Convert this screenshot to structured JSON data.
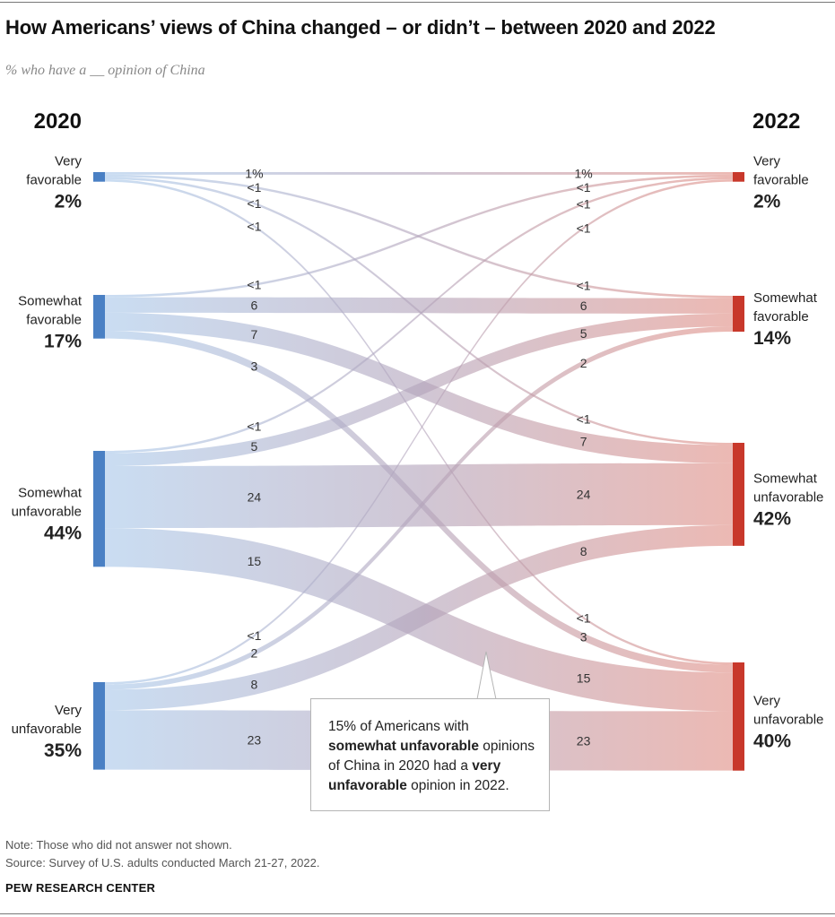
{
  "title": "How Americans’ views of China changed – or didn’t – between 2020 and 2022",
  "subtitle": "% who have a __ opinion of China",
  "note": "Note: Those who did not answer not shown.",
  "source": "Source: Survey of U.S. adults conducted March 21-27, 2022.",
  "brand": "PEW RESEARCH CENTER",
  "callout": {
    "part1": "15% of Americans with",
    "bold1": "somewhat unfavorable",
    "part2": " opinions of China in 2020 had a ",
    "bold2": "very unfavorable",
    "part3": " opinion in 2022."
  },
  "colors": {
    "left": "#4a80c4",
    "right": "#c8382b",
    "flow_start": "#a9c8ea",
    "flow_mid": "#b3a4bb",
    "flow_end": "#e08e85"
  },
  "chart_data": {
    "type": "sankey",
    "left_year": "2020",
    "right_year": "2022",
    "left_nodes": [
      {
        "label1": "Very",
        "label2": "favorable",
        "pct": "2%",
        "value": 2
      },
      {
        "label1": "Somewhat",
        "label2": "favorable",
        "pct": "17%",
        "value": 17
      },
      {
        "label1": "Somewhat",
        "label2": "unfavorable",
        "pct": "44%",
        "value": 44
      },
      {
        "label1": "Very",
        "label2": "unfavorable",
        "pct": "35%",
        "value": 35
      }
    ],
    "right_nodes": [
      {
        "label1": "Very",
        "label2": "favorable",
        "pct": "2%",
        "value": 2
      },
      {
        "label1": "Somewhat",
        "label2": "favorable",
        "pct": "14%",
        "value": 14
      },
      {
        "label1": "Somewhat",
        "label2": "unfavorable",
        "pct": "42%",
        "value": 42
      },
      {
        "label1": "Very",
        "label2": "unfavorable",
        "pct": "40%",
        "value": 40
      }
    ],
    "flows": [
      {
        "from": 0,
        "to": 0,
        "value": 1,
        "label": "1%"
      },
      {
        "from": 0,
        "to": 1,
        "value": 0.3,
        "label": "<1"
      },
      {
        "from": 0,
        "to": 2,
        "value": 0.3,
        "label": "<1"
      },
      {
        "from": 0,
        "to": 3,
        "value": 0.3,
        "label": "<1"
      },
      {
        "from": 1,
        "to": 0,
        "value": 0.3,
        "label": "<1"
      },
      {
        "from": 1,
        "to": 1,
        "value": 6,
        "label": "6"
      },
      {
        "from": 1,
        "to": 2,
        "value": 7,
        "label": "7"
      },
      {
        "from": 1,
        "to": 3,
        "value": 3,
        "label": "3"
      },
      {
        "from": 2,
        "to": 0,
        "value": 0.3,
        "label": "<1"
      },
      {
        "from": 2,
        "to": 1,
        "value": 5,
        "label": "5"
      },
      {
        "from": 2,
        "to": 2,
        "value": 24,
        "label": "24"
      },
      {
        "from": 2,
        "to": 3,
        "value": 15,
        "label": "15"
      },
      {
        "from": 3,
        "to": 0,
        "value": 0.3,
        "label": "<1"
      },
      {
        "from": 3,
        "to": 1,
        "value": 2,
        "label": "2"
      },
      {
        "from": 3,
        "to": 2,
        "value": 8,
        "label": "8"
      },
      {
        "from": 3,
        "to": 3,
        "value": 23,
        "label": "23"
      }
    ]
  }
}
